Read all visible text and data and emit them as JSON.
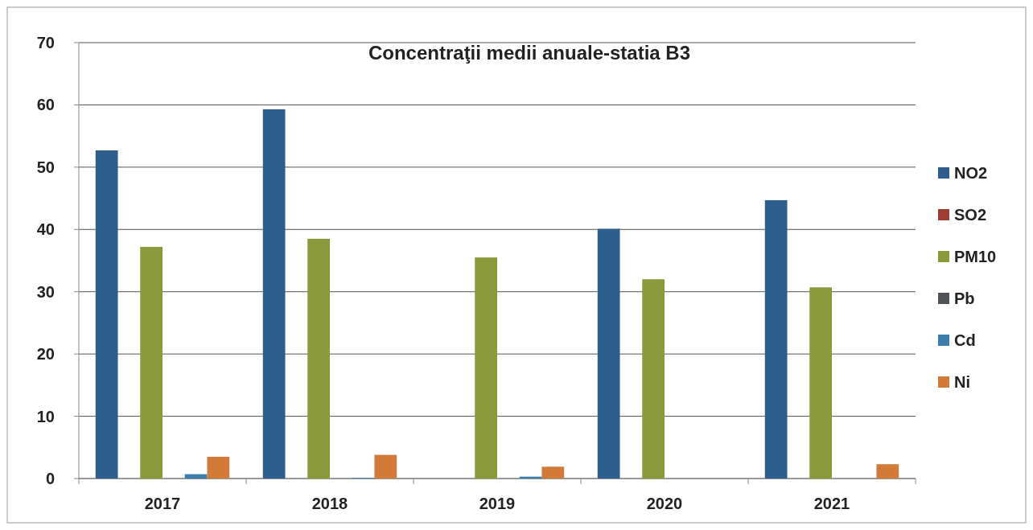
{
  "chart_data": {
    "type": "bar",
    "title": "Concentraţii medii anuale-statia B3",
    "categories": [
      "2017",
      "2018",
      "2019",
      "2020",
      "2021"
    ],
    "series": [
      {
        "name": "NO2",
        "color": "#2e5e8e",
        "values": [
          52.7,
          59.3,
          0,
          40.1,
          44.7
        ]
      },
      {
        "name": "SO2",
        "color": "#9e3d34",
        "values": [
          0,
          0,
          0,
          0,
          0
        ]
      },
      {
        "name": "PM10",
        "color": "#8a9a3a",
        "values": [
          37.2,
          38.5,
          35.5,
          32.0,
          30.7
        ]
      },
      {
        "name": "Pb",
        "color": "#4f5358",
        "values": [
          0,
          0,
          0,
          0,
          0
        ]
      },
      {
        "name": "Cd",
        "color": "#3b7dab",
        "values": [
          0.7,
          0.1,
          0.3,
          0,
          0
        ]
      },
      {
        "name": "Ni",
        "color": "#d27a37",
        "values": [
          3.5,
          3.8,
          1.9,
          0,
          2.3
        ]
      }
    ],
    "ylim": [
      0,
      70
    ],
    "yticks": [
      0,
      10,
      20,
      30,
      40,
      50,
      60,
      70
    ],
    "grid": "y",
    "legend": "right"
  }
}
